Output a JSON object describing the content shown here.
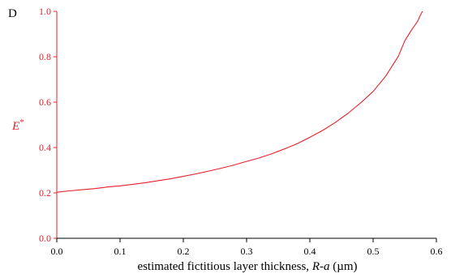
{
  "chart_data": {
    "type": "line",
    "panel_label": "D",
    "xlabel": {
      "prefix": "estimated fictitious layer thickness, ",
      "italic": "R-a",
      "suffix": " (µm)"
    },
    "ylabel": {
      "main": "E",
      "sup": "*"
    },
    "xlim": [
      0.0,
      0.6
    ],
    "ylim": [
      0.0,
      1.0
    ],
    "x_ticks": [
      "0.0",
      "0.1",
      "0.2",
      "0.3",
      "0.4",
      "0.5",
      "0.6"
    ],
    "y_ticks": [
      "0.0",
      "0.2",
      "0.4",
      "0.6",
      "0.8",
      "1.0"
    ],
    "grid": false,
    "colors": {
      "y_axis": "#e8202a",
      "x_axis": "#000000",
      "series": "#e8202a"
    },
    "series": [
      {
        "x": [
          0.0,
          0.02,
          0.04,
          0.06,
          0.08,
          0.1,
          0.12,
          0.14,
          0.16,
          0.18,
          0.2,
          0.22,
          0.24,
          0.26,
          0.28,
          0.3,
          0.32,
          0.34,
          0.36,
          0.38,
          0.4,
          0.42,
          0.44,
          0.46,
          0.48,
          0.5,
          0.52,
          0.54,
          0.55,
          0.56,
          0.57,
          0.575,
          0.578
        ],
        "y": [
          0.203,
          0.209,
          0.214,
          0.219,
          0.226,
          0.231,
          0.238,
          0.245,
          0.254,
          0.262,
          0.273,
          0.284,
          0.296,
          0.309,
          0.323,
          0.339,
          0.354,
          0.373,
          0.394,
          0.417,
          0.445,
          0.475,
          0.51,
          0.55,
          0.596,
          0.647,
          0.715,
          0.803,
          0.87,
          0.915,
          0.955,
          0.985,
          1.0
        ]
      }
    ]
  }
}
